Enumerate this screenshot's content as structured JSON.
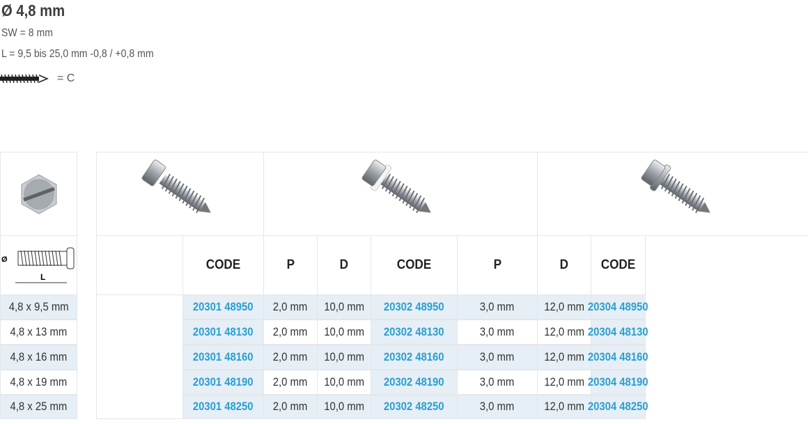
{
  "spec": {
    "title": "Ø 4,8 mm",
    "sw": "SW = 8 mm",
    "length": "L = 9,5 bis 25,0 mm -0,8 / +0,8 mm",
    "thread_label": "= C",
    "thread_icon": "thread-type-c-icon"
  },
  "left_table": {
    "diagram_labels": {
      "diameter": "Ø",
      "length": "L"
    },
    "sizes": [
      "4,8 x 9,5 mm",
      "4,8 x 13 mm",
      "4,8 x 16 mm",
      "4,8 x 19 mm",
      "4,8 x 25 mm"
    ]
  },
  "groups": [
    {
      "image": "hex-head-tapping-screw",
      "headers": {
        "code": "CODE",
        "p": "P",
        "d": "D"
      },
      "rows": [
        {
          "code": "20301 48950",
          "p": "2,0 mm",
          "d": "10,0 mm"
        },
        {
          "code": "20301 48130",
          "p": "2,0 mm",
          "d": "10,0 mm"
        },
        {
          "code": "20301 48160",
          "p": "2,0 mm",
          "d": "10,0 mm"
        },
        {
          "code": "20301 48190",
          "p": "2,0 mm",
          "d": "10,0 mm"
        },
        {
          "code": "20301 48250",
          "p": "2,0 mm",
          "d": "10,0 mm"
        }
      ]
    },
    {
      "image": "hex-head-screw-with-white-washer",
      "headers": {
        "code": "CODE",
        "p": "P",
        "d": "D"
      },
      "rows": [
        {
          "code": "20302 48950",
          "p": "3,0 mm",
          "d": "12,0 mm"
        },
        {
          "code": "20302 48130",
          "p": "3,0 mm",
          "d": "12,0 mm"
        },
        {
          "code": "20302 48160",
          "p": "3,0 mm",
          "d": "12,0 mm"
        },
        {
          "code": "20302 48190",
          "p": "3,0 mm",
          "d": "12,0 mm"
        },
        {
          "code": "20302 48250",
          "p": "3,0 mm",
          "d": "12,0 mm"
        }
      ]
    },
    {
      "image": "hex-head-screw-with-metal-washer",
      "headers": {
        "code": "CODE"
      },
      "rows": [
        {
          "code": "20304 48950"
        },
        {
          "code": "20304 48130"
        },
        {
          "code": "20304 48160"
        },
        {
          "code": "20304 48190"
        },
        {
          "code": "20304 48250"
        }
      ]
    }
  ],
  "colors": {
    "code": "#2a9fd0",
    "row_highlight": "#e6eff6"
  }
}
